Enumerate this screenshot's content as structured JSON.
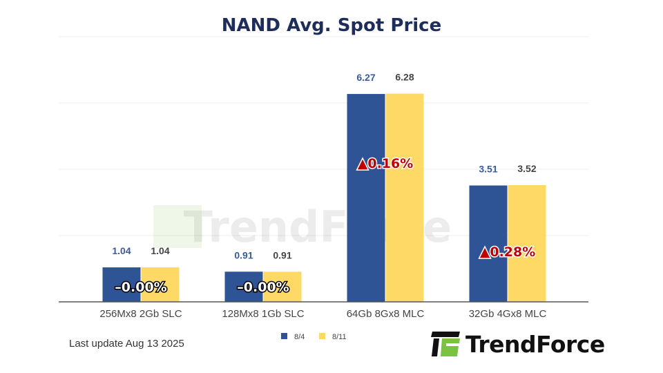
{
  "chart_data": {
    "type": "bar",
    "title": "NAND Avg. Spot Price",
    "categories": [
      "256Mx8 2Gb SLC",
      "128Mx8 1Gb SLC",
      "64Gb 8Gx8 MLC",
      "32Gb 4Gx8 MLC"
    ],
    "series": [
      {
        "name": "8/4",
        "values": [
          1.04,
          0.91,
          6.27,
          3.51
        ],
        "color": "#2f5496"
      },
      {
        "name": "8/11",
        "values": [
          1.04,
          0.91,
          6.28,
          3.52
        ],
        "color": "#ffd966"
      }
    ],
    "annotations": [
      "–0.00%",
      "–0.00%",
      "▲0.16%",
      "▲0.28%"
    ],
    "annotation_colors": {
      "flat": "#ffffff",
      "up": "#c00000"
    },
    "ylim": [
      0,
      8
    ],
    "grid": true,
    "legend": "bottom",
    "xlabel": "",
    "ylabel": ""
  },
  "footer": {
    "last_update": "Last update Aug 13  2025"
  },
  "brand": {
    "logo_text": "TrendForce",
    "watermark": "TrendForce",
    "accent": "#7cc242"
  }
}
